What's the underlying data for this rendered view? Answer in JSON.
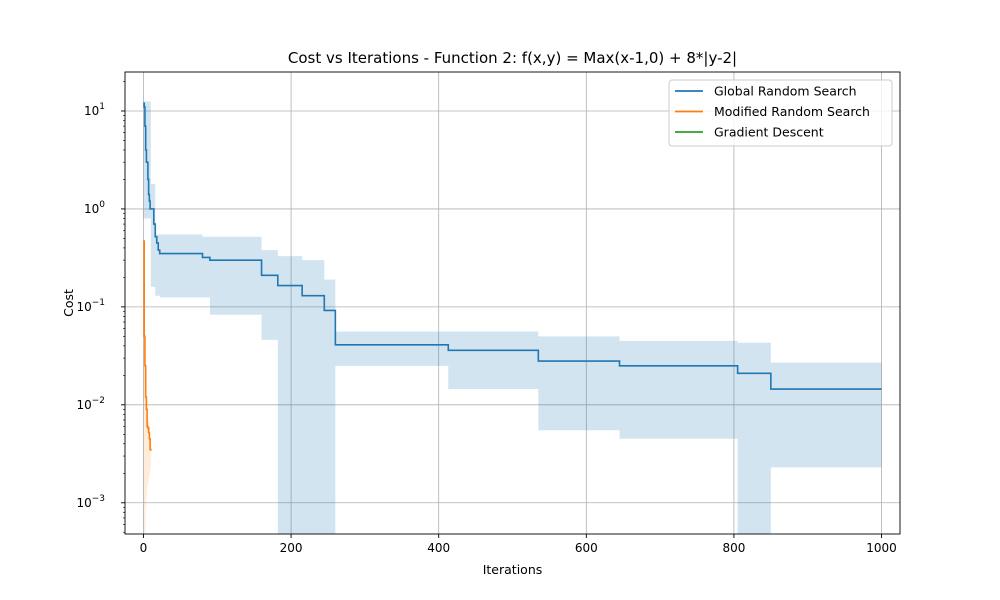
{
  "chart_data": {
    "type": "line",
    "title": "Cost vs Iterations - Function 2: f(x,y) = Max(x-1,0) + 8*|y-2|",
    "xlabel": "Iterations",
    "ylabel": "Cost",
    "xlim": [
      -25,
      1025
    ],
    "ylim": [
      0.00048,
      25
    ],
    "yscale": "log",
    "grid": true,
    "legend_position": "top-right",
    "x_ticks": [
      {
        "value": 0,
        "label": "0"
      },
      {
        "value": 200,
        "label": "200"
      },
      {
        "value": 400,
        "label": "400"
      },
      {
        "value": 600,
        "label": "600"
      },
      {
        "value": 800,
        "label": "800"
      },
      {
        "value": 1000,
        "label": "1000"
      }
    ],
    "y_ticks": [
      {
        "value": 0.001,
        "base": "10",
        "exp": "−3"
      },
      {
        "value": 0.01,
        "base": "10",
        "exp": "−2"
      },
      {
        "value": 0.1,
        "base": "10",
        "exp": "−1"
      },
      {
        "value": 1,
        "base": "10",
        "exp": "0"
      },
      {
        "value": 10,
        "base": "10",
        "exp": "1"
      }
    ],
    "series": [
      {
        "name": "Global Random Search",
        "color": "#1f77b4",
        "line": {
          "x": [
            0,
            1,
            2,
            3,
            4,
            5,
            6,
            7,
            8,
            9,
            10,
            12,
            14,
            16,
            18,
            20,
            22,
            25,
            80,
            90,
            160,
            182,
            215,
            245,
            260,
            413,
            535,
            645,
            805,
            850,
            1000
          ],
          "y": [
            12.0,
            11.0,
            7.0,
            4.0,
            3.0,
            3.0,
            2.0,
            1.4,
            1.2,
            1.0,
            1.0,
            1.0,
            0.7,
            0.52,
            0.45,
            0.38,
            0.35,
            0.35,
            0.32,
            0.3,
            0.21,
            0.165,
            0.13,
            0.092,
            0.041,
            0.036,
            0.028,
            0.025,
            0.021,
            0.0145,
            0.0145
          ]
        },
        "band": {
          "x": [
            0,
            10,
            16,
            22,
            80,
            90,
            160,
            182,
            215,
            245,
            260,
            413,
            535,
            645,
            805,
            850,
            1000
          ],
          "upper": [
            12.5,
            1.8,
            0.55,
            0.55,
            0.52,
            0.52,
            0.38,
            0.33,
            0.3,
            0.19,
            0.056,
            0.056,
            0.05,
            0.045,
            0.043,
            0.027,
            0.027
          ],
          "lower": [
            0.8,
            0.16,
            0.13,
            0.125,
            0.125,
            0.083,
            0.046,
            0.0001,
            0.0001,
            0.0001,
            0.025,
            0.0145,
            0.0055,
            0.0045,
            0.0001,
            0.0023,
            0.0023
          ]
        }
      },
      {
        "name": "Modified Random Search",
        "color": "#ff7f0e",
        "line": {
          "x": [
            0,
            1,
            2,
            3,
            4,
            5,
            6,
            7,
            8,
            9,
            10
          ],
          "y": [
            0.47,
            0.05,
            0.025,
            0.012,
            0.009,
            0.006,
            0.0058,
            0.0052,
            0.0045,
            0.0035,
            0.0034
          ]
        },
        "band": {
          "x": [
            0,
            1,
            2,
            3,
            4,
            5,
            6,
            7,
            8,
            9,
            10
          ],
          "upper": [
            0.5,
            0.06,
            0.03,
            0.016,
            0.012,
            0.008,
            0.0075,
            0.0068,
            0.006,
            0.0045,
            0.0044
          ],
          "lower": [
            0.0001,
            0.0001,
            0.0005,
            0.0009,
            0.0012,
            0.0015,
            0.0016,
            0.0018,
            0.002,
            0.0022,
            0.0024
          ]
        }
      },
      {
        "name": "Gradient Descent",
        "color": "#2ca02c",
        "line": {
          "x": [],
          "y": []
        }
      }
    ]
  }
}
